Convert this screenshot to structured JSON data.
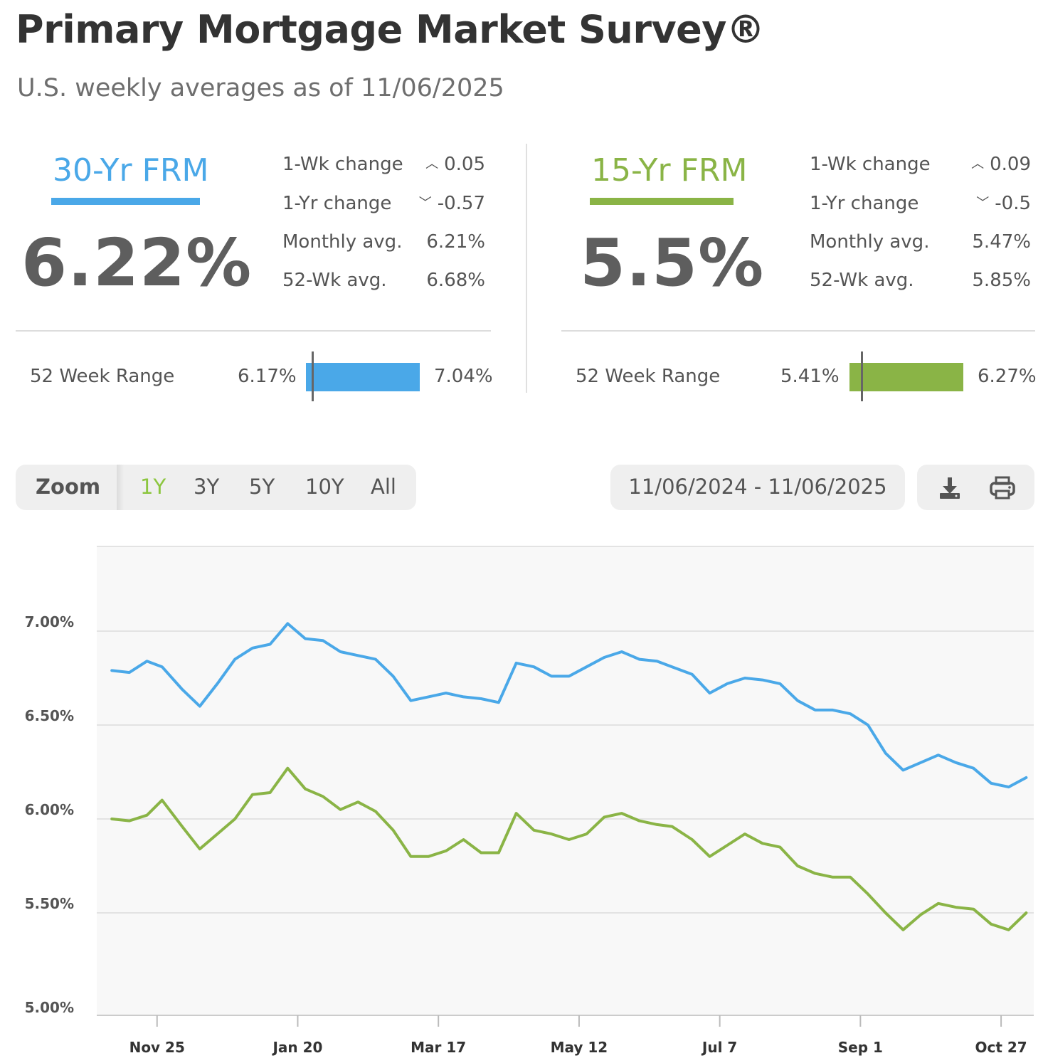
{
  "header": {
    "title": "Primary Mortgage Market Survey®",
    "subtitle": "U.S. weekly averages as of 11/06/2025"
  },
  "colors": {
    "frm30": "#4aa8e8",
    "frm15": "#8ab446",
    "grid": "#e3e3e3",
    "plot_bg": "#f8f8f8"
  },
  "frm30": {
    "label": "30-Yr FRM",
    "rate": "6.22%",
    "wk_change_label": "1-Wk change",
    "wk_change_dir": "up",
    "wk_change": "0.05",
    "yr_change_label": "1-Yr change",
    "yr_change_dir": "down",
    "yr_change": "-0.57",
    "monthly_label": "Monthly avg.",
    "monthly": "6.21%",
    "wk52_label": "52-Wk avg.",
    "wk52": "6.68%",
    "range_label": "52 Week Range",
    "range_low": "6.17%",
    "range_high": "7.04%",
    "range_low_value": 6.17,
    "range_high_value": 7.04,
    "current_value": 6.22
  },
  "frm15": {
    "label": "15-Yr FRM",
    "rate": "5.5%",
    "wk_change_label": "1-Wk change",
    "wk_change_dir": "up",
    "wk_change": "0.09",
    "yr_change_label": "1-Yr change",
    "yr_change_dir": "down",
    "yr_change": "-0.5",
    "monthly_label": "Monthly avg.",
    "monthly": "5.47%",
    "wk52_label": "52-Wk avg.",
    "wk52": "5.85%",
    "range_label": "52 Week Range",
    "range_low": "5.41%",
    "range_high": "6.27%",
    "range_low_value": 5.41,
    "range_high_value": 6.27,
    "current_value": 5.5
  },
  "toolbar": {
    "zoom_label": "Zoom",
    "zoom_options": [
      "1Y",
      "3Y",
      "5Y",
      "10Y",
      "All"
    ],
    "zoom_selected": "1Y",
    "date_range": "11/06/2024 - 11/06/2025",
    "download_icon": "download-icon",
    "print_icon": "print-icon"
  },
  "chart_data": {
    "type": "line",
    "x": [
      "2024-11-07",
      "2024-11-14",
      "2024-11-21",
      "2024-11-27",
      "2024-12-05",
      "2024-12-12",
      "2024-12-19",
      "2024-12-26",
      "2025-01-02",
      "2025-01-09",
      "2025-01-16",
      "2025-01-23",
      "2025-01-30",
      "2025-02-06",
      "2025-02-13",
      "2025-02-20",
      "2025-02-27",
      "2025-03-06",
      "2025-03-13",
      "2025-03-20",
      "2025-03-27",
      "2025-04-03",
      "2025-04-10",
      "2025-04-17",
      "2025-04-24",
      "2025-05-01",
      "2025-05-08",
      "2025-05-15",
      "2025-05-22",
      "2025-05-29",
      "2025-06-05",
      "2025-06-12",
      "2025-06-18",
      "2025-06-26",
      "2025-07-03",
      "2025-07-10",
      "2025-07-17",
      "2025-07-24",
      "2025-07-31",
      "2025-08-07",
      "2025-08-14",
      "2025-08-21",
      "2025-08-28",
      "2025-09-04",
      "2025-09-11",
      "2025-09-18",
      "2025-09-25",
      "2025-10-02",
      "2025-10-09",
      "2025-10-16",
      "2025-10-23",
      "2025-10-30",
      "2025-11-06"
    ],
    "series": [
      {
        "name": "30-Yr FRM",
        "values": [
          6.79,
          6.78,
          6.84,
          6.81,
          6.69,
          6.6,
          6.72,
          6.85,
          6.91,
          6.93,
          7.04,
          6.96,
          6.95,
          6.89,
          6.87,
          6.85,
          6.76,
          6.63,
          6.65,
          6.67,
          6.65,
          6.64,
          6.62,
          6.83,
          6.81,
          6.76,
          6.76,
          6.81,
          6.86,
          6.89,
          6.85,
          6.84,
          6.81,
          6.77,
          6.67,
          6.72,
          6.75,
          6.74,
          6.72,
          6.63,
          6.58,
          6.58,
          6.56,
          6.5,
          6.35,
          6.26,
          6.3,
          6.34,
          6.3,
          6.27,
          6.19,
          6.17,
          6.22
        ]
      },
      {
        "name": "15-Yr FRM",
        "values": [
          6.0,
          5.99,
          6.02,
          6.1,
          5.96,
          5.84,
          5.92,
          6.0,
          6.13,
          6.14,
          6.27,
          6.16,
          6.12,
          6.05,
          6.09,
          6.04,
          5.94,
          5.8,
          5.8,
          5.83,
          5.89,
          5.82,
          5.82,
          6.03,
          5.94,
          5.92,
          5.89,
          5.92,
          6.01,
          6.03,
          5.99,
          5.97,
          5.96,
          5.89,
          5.8,
          5.86,
          5.92,
          5.87,
          5.85,
          5.75,
          5.71,
          5.69,
          5.69,
          5.6,
          5.5,
          5.41,
          5.49,
          5.55,
          5.53,
          5.52,
          5.44,
          5.41,
          5.5
        ]
      }
    ],
    "y_ticks": [
      "5.00%",
      "5.50%",
      "6.00%",
      "6.50%",
      "7.00%"
    ],
    "y_tick_values": [
      5.0,
      5.5,
      6.0,
      6.5,
      7.0
    ],
    "ylim": [
      5.0,
      7.5
    ],
    "x_ticks": [
      "Nov 25",
      "Jan 20",
      "Mar 17",
      "May 12",
      "Jul 7",
      "Sep 1",
      "Oct 27"
    ],
    "x_tick_dates": [
      "2024-11-25",
      "2025-01-20",
      "2025-03-17",
      "2025-05-12",
      "2025-07-07",
      "2025-09-01",
      "2025-10-27"
    ],
    "xlim": [
      "2024-11-01",
      "2025-11-09"
    ],
    "grid": true
  }
}
